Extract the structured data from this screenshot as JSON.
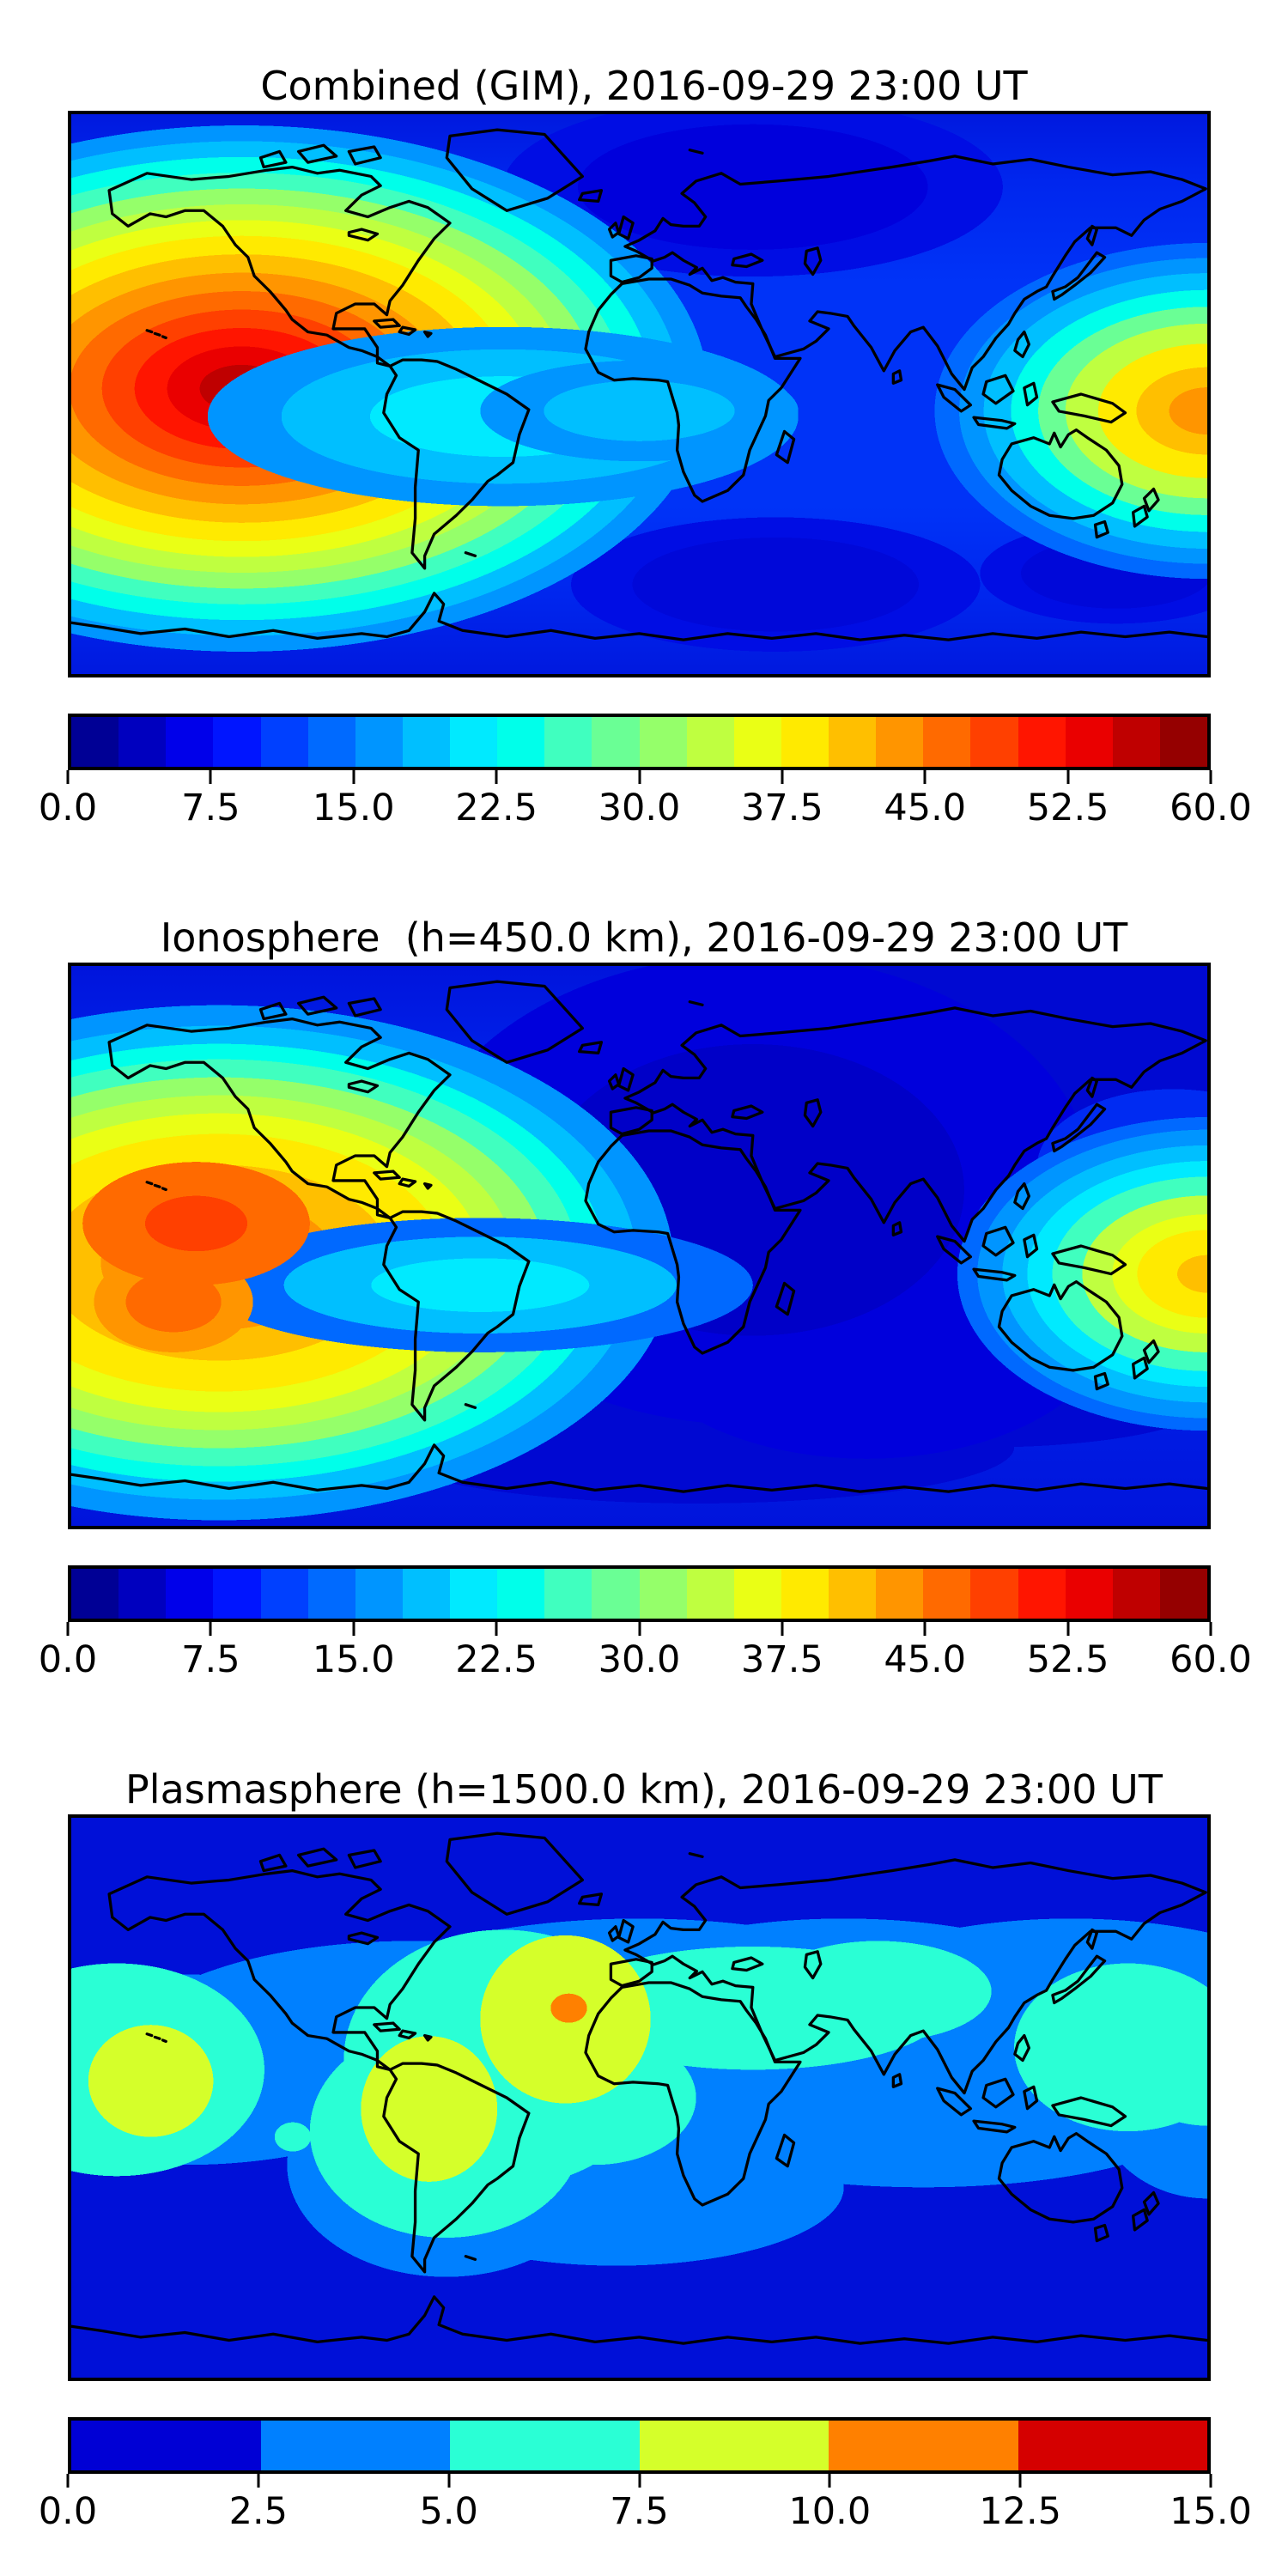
{
  "figure": {
    "background_color": "#ffffff",
    "text_color": "#000000",
    "timestamp": "2016-09-29 23:00 UT"
  },
  "panels": [
    {
      "id": "combined",
      "title": "Combined (GIM), 2016-09-29 23:00 UT",
      "colorbar": {
        "min": 0.0,
        "max": 60.0,
        "tick_labels": [
          "0.0",
          "7.5",
          "15.0",
          "22.5",
          "30.0",
          "37.5",
          "45.0",
          "52.5",
          "60.0"
        ],
        "segment_colors": [
          "#000095",
          "#0000BF",
          "#0000EA",
          "#0015FF",
          "#0040FF",
          "#006AFF",
          "#0095FF",
          "#00BFFF",
          "#00EAFF",
          "#00FFEA",
          "#40FFBF",
          "#6AFF95",
          "#95FF6A",
          "#BFFF40",
          "#EAFF15",
          "#FFEA00",
          "#FFBF00",
          "#FF9500",
          "#FF6A00",
          "#FF4000",
          "#FF1500",
          "#EA0000",
          "#BF0000",
          "#950000"
        ]
      }
    },
    {
      "id": "ionosphere",
      "title": "Ionosphere  (h=450.0 km), 2016-09-29 23:00 UT",
      "colorbar": {
        "min": 0.0,
        "max": 60.0,
        "tick_labels": [
          "0.0",
          "7.5",
          "15.0",
          "22.5",
          "30.0",
          "37.5",
          "45.0",
          "52.5",
          "60.0"
        ],
        "segment_colors": [
          "#000095",
          "#0000BF",
          "#0000EA",
          "#0015FF",
          "#0040FF",
          "#006AFF",
          "#0095FF",
          "#00BFFF",
          "#00EAFF",
          "#00FFEA",
          "#40FFBF",
          "#6AFF95",
          "#95FF6A",
          "#BFFF40",
          "#EAFF15",
          "#FFEA00",
          "#FFBF00",
          "#FF9500",
          "#FF6A00",
          "#FF4000",
          "#FF1500",
          "#EA0000",
          "#BF0000",
          "#950000"
        ]
      }
    },
    {
      "id": "plasmasphere",
      "title": "Plasmasphere (h=1500.0 km), 2016-09-29 23:00 UT",
      "colorbar": {
        "min": 0.0,
        "max": 15.0,
        "tick_labels": [
          "0.0",
          "2.5",
          "5.0",
          "7.5",
          "10.0",
          "12.5",
          "15.0"
        ],
        "segment_colors": [
          "#0000D5",
          "#0080FF",
          "#2AFFD5",
          "#D5FF2A",
          "#FF8000",
          "#D50000"
        ]
      }
    }
  ],
  "chart_data": [
    {
      "type": "heatmap",
      "subtype": "filled-contour world map",
      "title": "Combined (GIM), 2016-09-29 23:00 UT",
      "projection": "equirectangular, lon -180..180, lat -90..90, coastlines drawn in black",
      "colormap": "jet (discrete)",
      "levels": [
        0,
        2.5,
        5,
        7.5,
        10,
        12.5,
        15,
        17.5,
        20,
        22.5,
        25,
        27.5,
        30,
        32.5,
        35,
        37.5,
        40,
        42.5,
        45,
        47.5,
        50,
        52.5,
        55,
        57.5,
        60
      ],
      "colorbar_ticks": [
        0.0,
        7.5,
        15.0,
        22.5,
        30.0,
        37.5,
        45.0,
        52.5,
        60.0
      ],
      "value_range_shown": [
        0,
        60
      ],
      "features": [
        {
          "name": "primary hotspot (South Pacific)",
          "lon": -128,
          "lat": -5,
          "peak_value": 57,
          "note": "deep-red core with concentric jet rings, elongated east-west"
        },
        {
          "name": "secondary hotspot (western Pacific, clipped at right edge)",
          "lon": 176,
          "lat": -7,
          "peak_value": 46
        },
        {
          "name": "equatorial cyan band bridging hotspot to South America",
          "lon_range": [
            -100,
            -40
          ],
          "lat": -5,
          "value_range": [
            20,
            27
          ]
        },
        {
          "name": "cyan-green patch at left edge",
          "lon": -158,
          "lat": -42,
          "value_range": [
            15,
            25
          ]
        },
        {
          "name": "low-density region (northern Eurasia)",
          "lon": 40,
          "lat": 60,
          "value_range": [
            2.5,
            7.5
          ]
        },
        {
          "name": "low-density patches (southern Indian Ocean / south Atlantic)",
          "lon": 45,
          "lat": -65,
          "value_range": [
            2.5,
            7.5
          ]
        },
        {
          "name": "background ocean value",
          "value_range": [
            5,
            12.5
          ]
        }
      ]
    },
    {
      "type": "heatmap",
      "subtype": "filled-contour world map",
      "title": "Ionosphere  (h=450.0 km), 2016-09-29 23:00 UT",
      "projection": "equirectangular, lon -180..180, lat -90..90, coastlines drawn in black",
      "colormap": "jet (discrete)",
      "levels": [
        0,
        2.5,
        5,
        7.5,
        10,
        12.5,
        15,
        17.5,
        20,
        22.5,
        25,
        27.5,
        30,
        32.5,
        35,
        37.5,
        40,
        42.5,
        45,
        47.5,
        50,
        52.5,
        55,
        57.5,
        60
      ],
      "colorbar_ticks": [
        0.0,
        7.5,
        15.0,
        22.5,
        30.0,
        37.5,
        45.0,
        52.5,
        60.0
      ],
      "value_range_shown": [
        0,
        60
      ],
      "features": [
        {
          "name": "primary hotspot (South Pacific)",
          "lon": -135,
          "lat": -3,
          "peak_value": 48,
          "note": "orange-red core, yellow tongue extending east toward Peru"
        },
        {
          "name": "secondary lobe of hotspot",
          "lon": -147,
          "lat": -17,
          "peak_value": 44
        },
        {
          "name": "secondary hotspot (western Pacific at right edge)",
          "lon": 178,
          "lat": -10,
          "peak_value": 42
        },
        {
          "name": "night-side minimum over Europe/Africa/India",
          "lon": 35,
          "lat": 15,
          "value_range": [
            0,
            2.5
          ]
        },
        {
          "name": "background ocean value",
          "value_range": [
            2.5,
            10
          ]
        }
      ]
    },
    {
      "type": "heatmap",
      "subtype": "filled-contour world map",
      "title": "Plasmasphere (h=1500.0 km), 2016-09-29 23:00 UT",
      "projection": "equirectangular, lon -180..180, lat -90..90, coastlines drawn in black",
      "colormap": "jet (discrete, 6 levels)",
      "levels": [
        0,
        2.5,
        5.0,
        7.5,
        10.0,
        12.5,
        15.0
      ],
      "colorbar_ticks": [
        0.0,
        2.5,
        5.0,
        7.5,
        10.0,
        12.5,
        15.0
      ],
      "value_range_shown": [
        0,
        15
      ],
      "features": [
        {
          "name": "global background (high latitudes)",
          "value_range": [
            0,
            2.5
          ]
        },
        {
          "name": "wavy equatorial belt",
          "lat_range": [
            -35,
            35
          ],
          "value_range": [
            2.5,
            5
          ]
        },
        {
          "name": "enhanced patches (South America/Atlantic, Africa-Mideast-India, west Pacific, east Pacific)",
          "value_range": [
            5,
            7.5
          ]
        },
        {
          "name": "core over central Atlantic off West Africa",
          "lon": -23,
          "lat": 13,
          "value_range": [
            7.5,
            10
          ]
        },
        {
          "name": "core over eastern South America",
          "lon": -58,
          "lat": -5,
          "value_range": [
            7.5,
            10
          ]
        },
        {
          "name": "core in central Pacific at left edge",
          "lon": -155,
          "lat": 5,
          "value_range": [
            7.5,
            10
          ]
        },
        {
          "name": "peak spot (central Atlantic)",
          "lon": -23,
          "lat": 13,
          "value_range": [
            10,
            12.5
          ]
        }
      ]
    }
  ]
}
